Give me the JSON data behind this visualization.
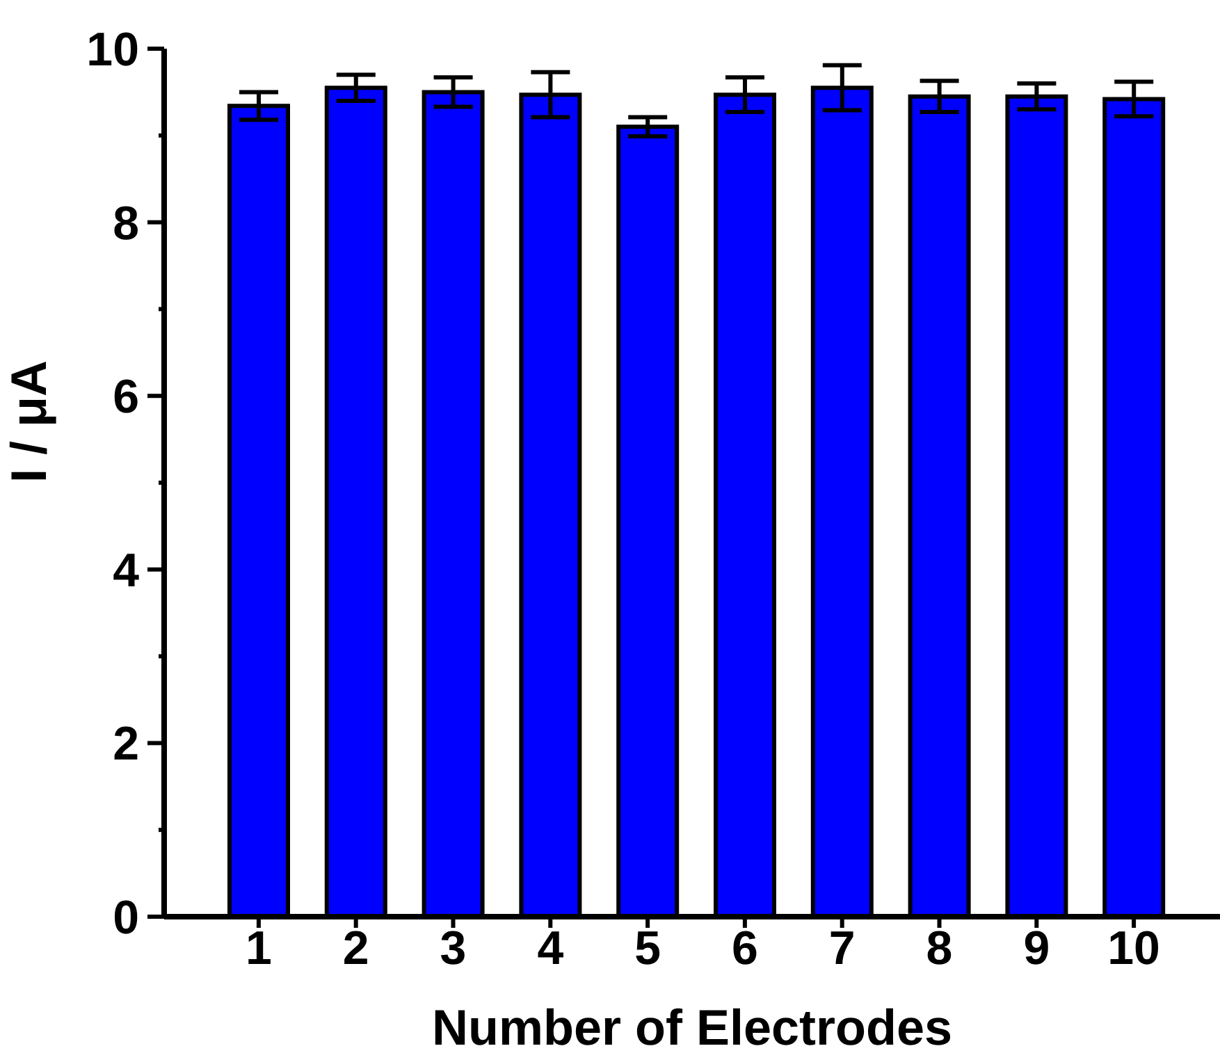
{
  "chart_data": {
    "type": "bar",
    "xlabel": "Number of Electrodes",
    "ylabel": "I / μA",
    "categories": [
      "1",
      "2",
      "3",
      "4",
      "5",
      "6",
      "7",
      "8",
      "9",
      "10"
    ],
    "values": [
      9.34,
      9.55,
      9.5,
      9.47,
      9.1,
      9.47,
      9.55,
      9.45,
      9.45,
      9.42
    ],
    "errors": [
      0.16,
      0.15,
      0.17,
      0.26,
      0.11,
      0.2,
      0.26,
      0.18,
      0.15,
      0.2
    ],
    "color": "#0000ff",
    "ylim": [
      0,
      10
    ],
    "yticks": [
      0,
      {
        "value": 1,
        "label": null
      },
      2,
      {
        "value": 3,
        "label": null
      },
      4,
      {
        "value": 5,
        "label": null
      },
      6,
      {
        "value": 7,
        "label": null
      },
      8,
      {
        "value": 9,
        "label": null
      },
      10
    ],
    "grid": false,
    "legend": false
  }
}
